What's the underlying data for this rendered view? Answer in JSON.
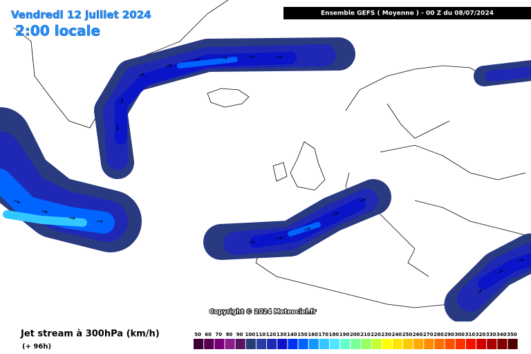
{
  "header": {
    "date": "Vendredi 12 juillet 2024",
    "time": "2:00 locale",
    "model": "Ensemble GEFS  ( Moyenne )  -  00 Z du 08/07/2024"
  },
  "footer": {
    "copyright": "Copyright © 2024 Meteociel.fr",
    "parameter": "Jet stream à 300hPa (km/h)",
    "lead_time": "(+ 96h)"
  },
  "legend": {
    "labels": [
      50,
      60,
      70,
      80,
      90,
      100,
      110,
      120,
      130,
      140,
      150,
      160,
      170,
      180,
      190,
      200,
      210,
      220,
      230,
      240,
      250,
      260,
      270,
      280,
      290,
      300,
      310,
      320,
      330,
      340,
      350
    ],
    "colors": [
      "#3c0032",
      "#5a0050",
      "#780078",
      "#8c1e8c",
      "#5a1464",
      "#283c78",
      "#2a3ca0",
      "#1e28b4",
      "#0a14c8",
      "#0032f0",
      "#0064ff",
      "#1496ff",
      "#32c8ff",
      "#50e6ff",
      "#64ffc8",
      "#78ff96",
      "#96ff64",
      "#c8ff32",
      "#ffff00",
      "#ffe600",
      "#ffc800",
      "#ffaa00",
      "#ff8c00",
      "#ff6e00",
      "#ff5000",
      "#ff3200",
      "#f01400",
      "#d20000",
      "#aa0000",
      "#820000",
      "#500000"
    ]
  }
}
